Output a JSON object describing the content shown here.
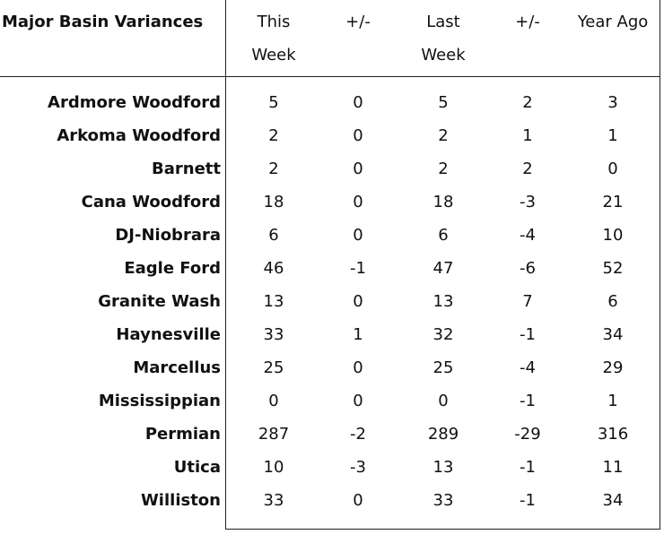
{
  "header": {
    "title": "Major Basin Variances",
    "columns": [
      "This Week",
      "+/-",
      "Last Week",
      "+/-",
      "Year Ago"
    ]
  },
  "rows": [
    {
      "label": "Ardmore Woodford",
      "values": [
        5,
        0,
        5,
        2,
        3
      ]
    },
    {
      "label": "Arkoma Woodford",
      "values": [
        2,
        0,
        2,
        1,
        1
      ]
    },
    {
      "label": "Barnett",
      "values": [
        2,
        0,
        2,
        2,
        0
      ]
    },
    {
      "label": "Cana Woodford",
      "values": [
        18,
        0,
        18,
        -3,
        21
      ]
    },
    {
      "label": "DJ-Niobrara",
      "values": [
        6,
        0,
        6,
        -4,
        10
      ]
    },
    {
      "label": "Eagle Ford",
      "values": [
        46,
        -1,
        47,
        -6,
        52
      ]
    },
    {
      "label": "Granite Wash",
      "values": [
        13,
        0,
        13,
        7,
        6
      ]
    },
    {
      "label": "Haynesville",
      "values": [
        33,
        1,
        32,
        -1,
        34
      ]
    },
    {
      "label": "Marcellus",
      "values": [
        25,
        0,
        25,
        -4,
        29
      ]
    },
    {
      "label": "Mississippian",
      "values": [
        0,
        0,
        0,
        -1,
        1
      ]
    },
    {
      "label": "Permian",
      "values": [
        287,
        -2,
        289,
        -29,
        316
      ]
    },
    {
      "label": "Utica",
      "values": [
        10,
        -3,
        13,
        -1,
        11
      ]
    },
    {
      "label": "Williston",
      "values": [
        33,
        0,
        33,
        -1,
        34
      ]
    }
  ]
}
